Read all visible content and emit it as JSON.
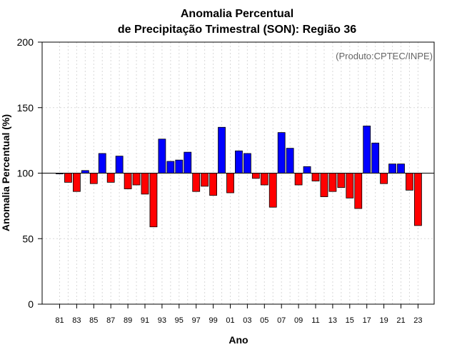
{
  "chart_data": {
    "type": "bar",
    "title_line1": "Anomalia Percentual",
    "title_line2": "de Precipitação Trimestral (SON): Região 36",
    "xlabel": "Ano",
    "ylabel": "Anomalia Percentual (%)",
    "credit": "(Produto:CPTEC/INPE)",
    "baseline": 100,
    "ylim": [
      0,
      200
    ],
    "yticks": [
      "0",
      "50",
      "100",
      "150",
      "200"
    ],
    "grid": true,
    "colors": {
      "above": "#0000ff",
      "below": "#ff0000"
    },
    "categories": [
      "81",
      "82",
      "83",
      "84",
      "85",
      "86",
      "87",
      "88",
      "89",
      "90",
      "91",
      "92",
      "93",
      "94",
      "95",
      "96",
      "97",
      "98",
      "99",
      "00",
      "01",
      "02",
      "03",
      "04",
      "05",
      "06",
      "07",
      "08",
      "09",
      "10",
      "11",
      "12",
      "13",
      "14",
      "15",
      "16",
      "17",
      "18",
      "19",
      "20",
      "21",
      "22",
      "23"
    ],
    "xtick_labels": [
      "81",
      "83",
      "85",
      "87",
      "89",
      "91",
      "93",
      "95",
      "97",
      "99",
      "01",
      "03",
      "05",
      "07",
      "09",
      "11",
      "13",
      "15",
      "17",
      "19",
      "21",
      "23"
    ],
    "values": [
      100,
      93,
      86,
      102,
      92,
      115,
      93,
      113,
      88,
      91,
      84,
      59,
      126,
      109,
      110,
      116,
      86,
      90,
      83,
      135,
      85,
      117,
      115,
      96,
      91,
      74,
      131,
      119,
      91,
      105,
      94,
      82,
      86,
      89,
      81,
      73,
      136,
      123,
      92,
      107,
      107,
      87,
      60
    ]
  }
}
